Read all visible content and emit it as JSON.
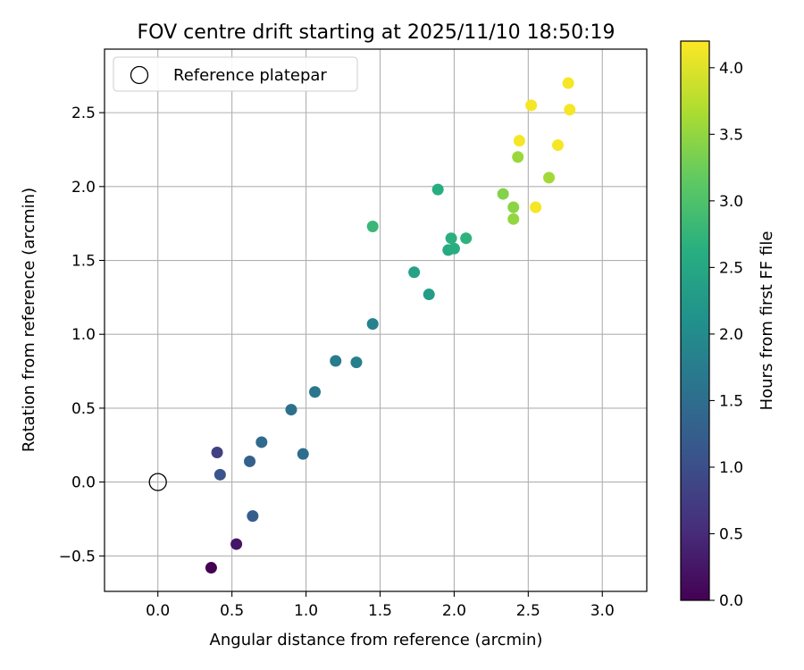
{
  "chart_data": {
    "type": "scatter",
    "title": "FOV centre drift starting at 2025/11/10 18:50:19",
    "xlabel": "Angular distance from reference (arcmin)",
    "ylabel": "Rotation from reference (arcmin)",
    "xlim": [
      -0.36,
      3.3
    ],
    "ylim": [
      -0.74,
      2.93
    ],
    "xticks": [
      0.0,
      0.5,
      1.0,
      1.5,
      2.0,
      2.5,
      3.0
    ],
    "xtick_labels": [
      "0.0",
      "0.5",
      "1.0",
      "1.5",
      "2.0",
      "2.5",
      "3.0"
    ],
    "yticks": [
      -0.5,
      0.0,
      0.5,
      1.0,
      1.5,
      2.0,
      2.5
    ],
    "ytick_labels": [
      "−0.5",
      "0.0",
      "0.5",
      "1.0",
      "1.5",
      "2.0",
      "2.5"
    ],
    "grid": true,
    "legend": {
      "placement": "top-left",
      "entries": [
        {
          "label": "Reference platepar",
          "marker": "open-circle"
        }
      ]
    },
    "reference_point": {
      "x": 0.0,
      "y": 0.0
    },
    "colorbar": {
      "label": "Hours from first FF file",
      "colormap": "viridis",
      "range": [
        0.0,
        4.2
      ],
      "ticks": [
        0.0,
        0.5,
        1.0,
        1.5,
        2.0,
        2.5,
        3.0,
        3.5,
        4.0
      ],
      "tick_labels": [
        "0.0",
        "0.5",
        "1.0",
        "1.5",
        "2.0",
        "2.5",
        "3.0",
        "3.5",
        "4.0"
      ]
    },
    "points": [
      {
        "x": 0.36,
        "y": -0.58,
        "hours": 0.0
      },
      {
        "x": 0.53,
        "y": -0.42,
        "hours": 0.25
      },
      {
        "x": 0.64,
        "y": -0.23,
        "hours": 1.25
      },
      {
        "x": 0.4,
        "y": 0.2,
        "hours": 0.8
      },
      {
        "x": 0.42,
        "y": 0.05,
        "hours": 1.1
      },
      {
        "x": 0.62,
        "y": 0.14,
        "hours": 1.3
      },
      {
        "x": 0.7,
        "y": 0.27,
        "hours": 1.45
      },
      {
        "x": 0.98,
        "y": 0.19,
        "hours": 1.5
      },
      {
        "x": 0.9,
        "y": 0.49,
        "hours": 1.55
      },
      {
        "x": 1.06,
        "y": 0.61,
        "hours": 1.65
      },
      {
        "x": 1.2,
        "y": 0.82,
        "hours": 1.75
      },
      {
        "x": 1.34,
        "y": 0.81,
        "hours": 1.8
      },
      {
        "x": 1.45,
        "y": 1.07,
        "hours": 1.85
      },
      {
        "x": 1.83,
        "y": 1.27,
        "hours": 2.3
      },
      {
        "x": 1.73,
        "y": 1.42,
        "hours": 2.4
      },
      {
        "x": 1.45,
        "y": 1.73,
        "hours": 2.8
      },
      {
        "x": 1.96,
        "y": 1.57,
        "hours": 2.55
      },
      {
        "x": 2.0,
        "y": 1.58,
        "hours": 2.6
      },
      {
        "x": 1.98,
        "y": 1.65,
        "hours": 2.65
      },
      {
        "x": 2.08,
        "y": 1.65,
        "hours": 2.7
      },
      {
        "x": 1.89,
        "y": 1.98,
        "hours": 2.6
      },
      {
        "x": 2.4,
        "y": 1.78,
        "hours": 3.5
      },
      {
        "x": 2.4,
        "y": 1.86,
        "hours": 3.45
      },
      {
        "x": 2.33,
        "y": 1.95,
        "hours": 3.4
      },
      {
        "x": 2.55,
        "y": 1.86,
        "hours": 4.15
      },
      {
        "x": 2.64,
        "y": 2.06,
        "hours": 3.6
      },
      {
        "x": 2.43,
        "y": 2.2,
        "hours": 3.55
      },
      {
        "x": 2.44,
        "y": 2.31,
        "hours": 4.15
      },
      {
        "x": 2.7,
        "y": 2.28,
        "hours": 4.15
      },
      {
        "x": 2.52,
        "y": 2.55,
        "hours": 4.15
      },
      {
        "x": 2.78,
        "y": 2.52,
        "hours": 4.15
      },
      {
        "x": 2.77,
        "y": 2.7,
        "hours": 4.15
      }
    ]
  }
}
